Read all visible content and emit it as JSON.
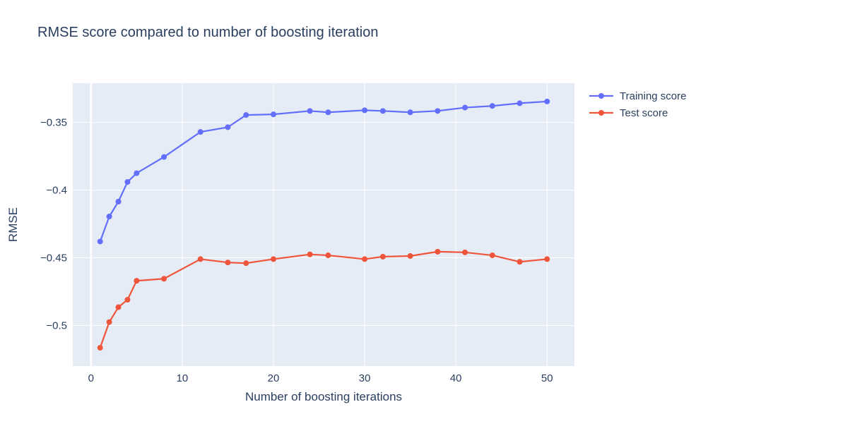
{
  "chart_data": {
    "type": "line",
    "title": "RMSE score compared to number of boosting iteration",
    "xlabel": "Number of boosting iterations",
    "ylabel": "RMSE",
    "xlim": [
      -2,
      53
    ],
    "ylim": [
      -0.53,
      -0.321
    ],
    "xticks": [
      0,
      10,
      20,
      30,
      40,
      50
    ],
    "yticks": [
      -0.35,
      -0.4,
      -0.45,
      -0.5
    ],
    "ytick_labels": [
      "−0.35",
      "−0.4",
      "−0.45",
      "−0.5"
    ],
    "grid": true,
    "legend_position": "top-right, outside plot",
    "background": "#e5ecf6",
    "x": [
      1,
      2,
      3,
      4,
      5,
      8,
      12,
      15,
      17,
      20,
      24,
      26,
      30,
      32,
      35,
      38,
      41,
      44,
      47,
      50
    ],
    "series": [
      {
        "name": "Training score",
        "color": "#636efa",
        "values": [
          -0.438,
          -0.4195,
          -0.4085,
          -0.394,
          -0.3875,
          -0.3755,
          -0.357,
          -0.3535,
          -0.3445,
          -0.344,
          -0.3415,
          -0.3425,
          -0.341,
          -0.3415,
          -0.3425,
          -0.3415,
          -0.339,
          -0.3378,
          -0.3358,
          -0.3345
        ]
      },
      {
        "name": "Test score",
        "color": "#ef553b",
        "values": [
          -0.5165,
          -0.4975,
          -0.4865,
          -0.481,
          -0.467,
          -0.4655,
          -0.451,
          -0.4535,
          -0.454,
          -0.451,
          -0.4475,
          -0.4482,
          -0.451,
          -0.4492,
          -0.4487,
          -0.4455,
          -0.446,
          -0.4482,
          -0.453,
          -0.451
        ]
      }
    ]
  }
}
